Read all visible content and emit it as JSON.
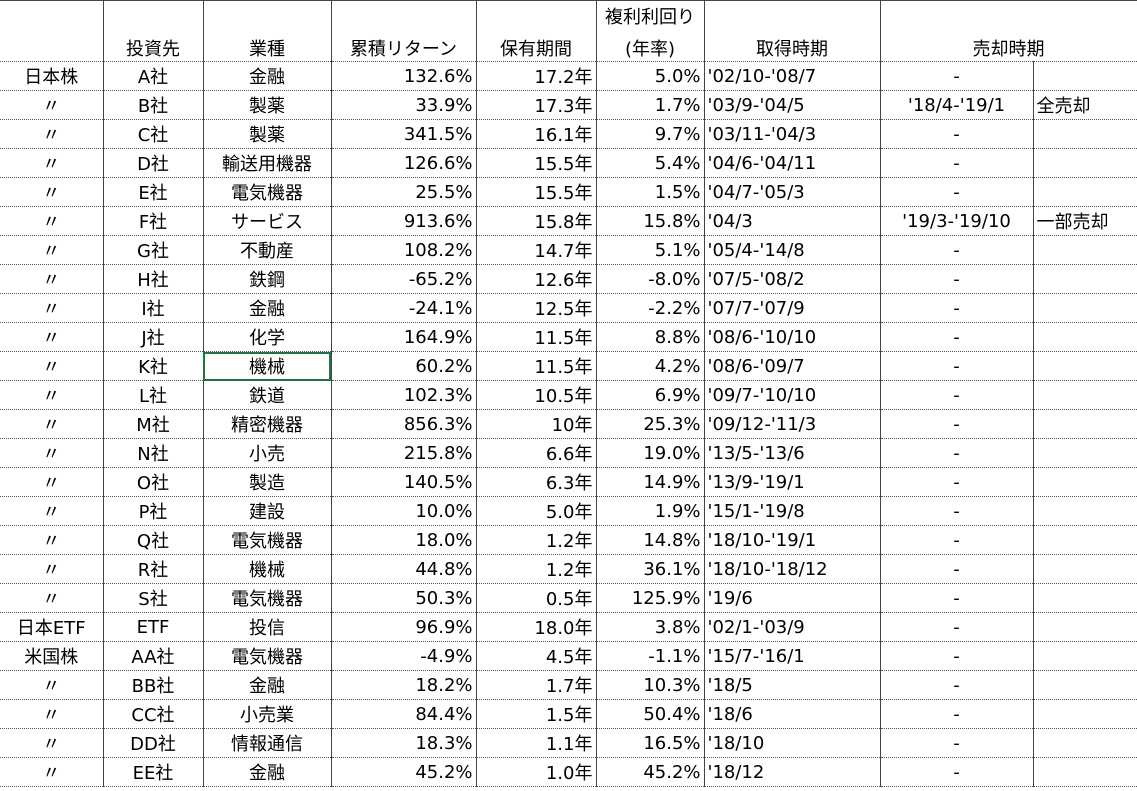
{
  "header": {
    "compound_rate": "複利利回り",
    "columns": [
      "投資先",
      "業種",
      "累積リターン",
      "保有期間",
      "(年率)",
      "取得時期",
      "売却時期"
    ]
  },
  "table": {
    "rows": [
      {
        "market": "日本株",
        "company": "A社",
        "industry": "金融",
        "return": "132.6%",
        "period": "17.2年",
        "rate": "5.0%",
        "acquired": "'02/10-'08/7",
        "sold": "-"
      },
      {
        "market": "〃",
        "company": "B社",
        "industry": "製薬",
        "return": "33.9%",
        "period": "17.3年",
        "rate": "1.7%",
        "acquired": "'03/9-'04/5",
        "sold": "'18/4-'19/1",
        "note": "全売却"
      },
      {
        "market": "〃",
        "company": "C社",
        "industry": "製薬",
        "return": "341.5%",
        "period": "16.1年",
        "rate": "9.7%",
        "acquired": "'03/11-'04/3",
        "sold": "-"
      },
      {
        "market": "〃",
        "company": "D社",
        "industry": "輸送用機器",
        "return": "126.6%",
        "period": "15.5年",
        "rate": "5.4%",
        "acquired": "'04/6-'04/11",
        "sold": "-"
      },
      {
        "market": "〃",
        "company": "E社",
        "industry": "電気機器",
        "return": "25.5%",
        "period": "15.5年",
        "rate": "1.5%",
        "acquired": "'04/7-'05/3",
        "sold": "-"
      },
      {
        "market": "〃",
        "company": "F社",
        "industry": "サービス",
        "return": "913.6%",
        "period": "15.8年",
        "rate": "15.8%",
        "acquired": "'04/3",
        "sold": "'19/3-'19/10",
        "note": "一部売却"
      },
      {
        "market": "〃",
        "company": "G社",
        "industry": "不動産",
        "return": "108.2%",
        "period": "14.7年",
        "rate": "5.1%",
        "acquired": "'05/4-'14/8",
        "sold": "-"
      },
      {
        "market": "〃",
        "company": "H社",
        "industry": "鉄鋼",
        "return": "-65.2%",
        "period": "12.6年",
        "rate": "-8.0%",
        "acquired": "'07/5-'08/2",
        "sold": "-"
      },
      {
        "market": "〃",
        "company": "I社",
        "industry": "金融",
        "return": "-24.1%",
        "period": "12.5年",
        "rate": "-2.2%",
        "acquired": "'07/7-'07/9",
        "sold": "-"
      },
      {
        "market": "〃",
        "company": "J社",
        "industry": "化学",
        "return": "164.9%",
        "period": "11.5年",
        "rate": "8.8%",
        "acquired": "'08/6-'10/10",
        "sold": "-"
      },
      {
        "market": "〃",
        "company": "K社",
        "industry": "機械",
        "return": "60.2%",
        "period": "11.5年",
        "rate": "4.2%",
        "acquired": "'08/6-'09/7",
        "sold": "-"
      },
      {
        "market": "〃",
        "company": "L社",
        "industry": "鉄道",
        "return": "102.3%",
        "period": "10.5年",
        "rate": "6.9%",
        "acquired": "'09/7-'10/10",
        "sold": "-"
      },
      {
        "market": "〃",
        "company": "M社",
        "industry": "精密機器",
        "return": "856.3%",
        "period": "10年",
        "rate": "25.3%",
        "acquired": "'09/12-'11/3",
        "sold": "-"
      },
      {
        "market": "〃",
        "company": "N社",
        "industry": "小売",
        "return": "215.8%",
        "period": "6.6年",
        "rate": "19.0%",
        "acquired": "'13/5-'13/6",
        "sold": "-"
      },
      {
        "market": "〃",
        "company": "O社",
        "industry": "製造",
        "return": "140.5%",
        "period": "6.3年",
        "rate": "14.9%",
        "acquired": "'13/9-'19/1",
        "sold": "-"
      },
      {
        "market": "〃",
        "company": "P社",
        "industry": "建設",
        "return": "10.0%",
        "period": "5.0年",
        "rate": "1.9%",
        "acquired": "'15/1-'19/8",
        "sold": "-"
      },
      {
        "market": "〃",
        "company": "Q社",
        "industry": "電気機器",
        "return": "18.0%",
        "period": "1.2年",
        "rate": "14.8%",
        "acquired": "'18/10-'19/1",
        "sold": "-"
      },
      {
        "market": "〃",
        "company": "R社",
        "industry": "機械",
        "return": "44.8%",
        "period": "1.2年",
        "rate": "36.1%",
        "acquired": "'18/10-'18/12",
        "sold": "-"
      },
      {
        "market": "〃",
        "company": "S社",
        "industry": "電気機器",
        "return": "50.3%",
        "period": "0.5年",
        "rate": "125.9%",
        "acquired": "'19/6",
        "sold": "-"
      },
      {
        "market": "日本ETF",
        "company": "ETF",
        "industry": "投信",
        "return": "96.9%",
        "period": "18.0年",
        "rate": "3.8%",
        "acquired": "'02/1-'03/9",
        "sold": "-"
      },
      {
        "market": "米国株",
        "company": "AA社",
        "industry": "電気機器",
        "return": "-4.9%",
        "period": "4.5年",
        "rate": "-1.1%",
        "acquired": "'15/7-'16/1",
        "sold": "-"
      },
      {
        "market": "〃",
        "company": "BB社",
        "industry": "金融",
        "return": "18.2%",
        "period": "1.7年",
        "rate": "10.3%",
        "acquired": "'18/5",
        "sold": "-"
      },
      {
        "market": "〃",
        "company": "CC社",
        "industry": "小売業",
        "return": "84.4%",
        "period": "1.5年",
        "rate": "50.4%",
        "acquired": "'18/6",
        "sold": "-"
      },
      {
        "market": "〃",
        "company": "DD社",
        "industry": "情報通信",
        "return": "18.3%",
        "period": "1.1年",
        "rate": "16.5%",
        "acquired": "'18/10",
        "sold": "-"
      },
      {
        "market": "〃",
        "company": "EE社",
        "industry": "金融",
        "return": "45.2%",
        "period": "1.0年",
        "rate": "45.2%",
        "acquired": "'18/12",
        "sold": "-"
      }
    ]
  }
}
